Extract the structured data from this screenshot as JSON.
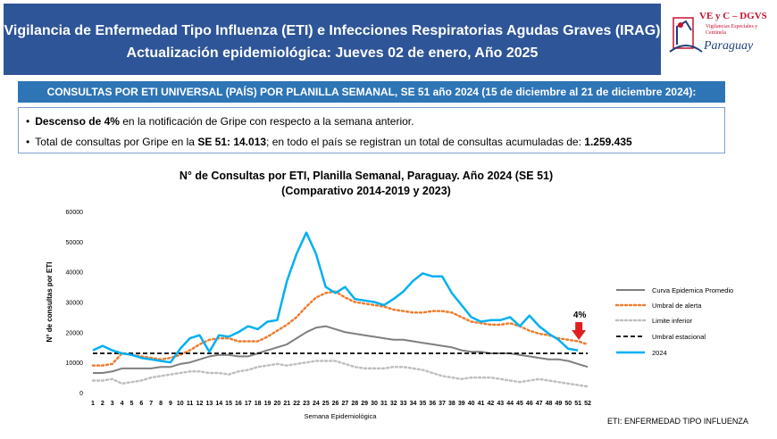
{
  "header": {
    "title_line1": "Vigilancia de Enfermedad Tipo Influenza (ETI) e Infecciones Respiratorias Agudas Graves (IRAG)",
    "title_line2": "Actualización epidemiológica: Jueves 02 de enero, Año 2025"
  },
  "logo": {
    "line1": "VE y C – DGVS",
    "line2": "Vigilancias Especiales y",
    "line3": "Centinela",
    "line4": "Paraguay"
  },
  "banner": "CONSULTAS POR ETI UNIVERSAL (PAÍS) POR PLANILLA SEMANAL, SE 51 año 2024 (15 de diciembre al 21 de diciembre 2024):",
  "bullets": {
    "b1_bold": "Descenso de 4%",
    "b1_rest": " en la notificación de Gripe con respecto a la semana anterior.",
    "b2_a": "Total de consultas por Gripe en la ",
    "b2_bold1": "SE 51: 14.013",
    "b2_b": "; en todo el país se registran un total de consultas acumuladas de: ",
    "b2_bold2": "1.259.435"
  },
  "footnote": "ETI: ENFERMEDAD TIPO INFLUENZA",
  "chart_data": {
    "type": "line",
    "title": "N° de Consultas por ETI, Planilla Semanal, Paraguay. Año 2024  (SE 51)",
    "subtitle": "(Comparativo 2014-2019 y 2023)",
    "xlabel": "Semana Epidemiológica",
    "ylabel": "N° de consultas por ETI",
    "ylim": [
      0,
      60000
    ],
    "yticks": [
      "0",
      "10000",
      "20000",
      "30000",
      "40000",
      "50000",
      "60000"
    ],
    "x": [
      1,
      2,
      3,
      4,
      5,
      6,
      7,
      8,
      9,
      10,
      11,
      12,
      13,
      14,
      15,
      16,
      17,
      18,
      19,
      20,
      21,
      22,
      23,
      24,
      25,
      26,
      27,
      28,
      29,
      30,
      31,
      32,
      33,
      34,
      35,
      36,
      37,
      38,
      39,
      40,
      41,
      42,
      43,
      44,
      45,
      46,
      47,
      48,
      49,
      50,
      51,
      52
    ],
    "annotation": "4%",
    "legend_position": "right",
    "series": [
      {
        "name": "Curva Epidemica Promedio",
        "color": "#7f7f7f",
        "style": "solid",
        "values": [
          6500,
          6500,
          7000,
          8000,
          8000,
          8000,
          8000,
          8500,
          8500,
          9500,
          10000,
          11000,
          12000,
          12500,
          12500,
          12000,
          12000,
          13000,
          14000,
          15000,
          16000,
          18000,
          20000,
          21500,
          22000,
          21000,
          20000,
          19500,
          19000,
          18500,
          18000,
          17500,
          17500,
          17000,
          16500,
          16000,
          15500,
          15000,
          14000,
          13500,
          13500,
          13000,
          13000,
          13000,
          12500,
          12000,
          11500,
          11000,
          11000,
          10500,
          9500,
          8500
        ]
      },
      {
        "name": "Umbral de alerta",
        "color": "#ed7d31",
        "style": "dotted",
        "values": [
          9000,
          9000,
          9500,
          13000,
          12500,
          12000,
          11500,
          11000,
          11500,
          12500,
          14000,
          16000,
          17500,
          18000,
          18000,
          17000,
          17000,
          17000,
          18500,
          20500,
          22500,
          25000,
          28500,
          31500,
          33000,
          33500,
          31500,
          30000,
          29500,
          29000,
          28500,
          27500,
          27000,
          26500,
          26500,
          27000,
          27000,
          26500,
          25000,
          23500,
          23000,
          22500,
          22500,
          23000,
          22000,
          20500,
          19500,
          19000,
          18000,
          17500,
          17000,
          16000
        ]
      },
      {
        "name": "Limite inferior",
        "color": "#bfbfbf",
        "style": "dotted",
        "values": [
          4000,
          4000,
          4500,
          3000,
          3500,
          4000,
          5000,
          5500,
          6000,
          6500,
          7000,
          7000,
          6500,
          6500,
          6000,
          7000,
          7500,
          8500,
          9000,
          9500,
          9000,
          9500,
          10000,
          10500,
          10500,
          10500,
          9500,
          8500,
          8000,
          8000,
          8000,
          8500,
          8500,
          8000,
          7500,
          6500,
          5500,
          5000,
          4500,
          5000,
          5000,
          5000,
          4500,
          4000,
          3500,
          4000,
          4500,
          4000,
          3500,
          3000,
          2500,
          2000
        ]
      },
      {
        "name": "Umbral estacional",
        "color": "#000000",
        "style": "dashed",
        "values": [
          13000,
          13000,
          13000,
          13000,
          13000,
          13000,
          13000,
          13000,
          13000,
          13000,
          13000,
          13000,
          13000,
          13000,
          13000,
          13000,
          13000,
          13000,
          13000,
          13000,
          13000,
          13000,
          13000,
          13000,
          13000,
          13000,
          13000,
          13000,
          13000,
          13000,
          13000,
          13000,
          13000,
          13000,
          13000,
          13000,
          13000,
          13000,
          13000,
          13000,
          13000,
          13000,
          13000,
          13000,
          13000,
          13000,
          13000,
          13000,
          13000,
          13000,
          13000,
          13000
        ]
      },
      {
        "name": "2024",
        "color": "#00b0f0",
        "style": "solid",
        "values": [
          14000,
          15500,
          14000,
          13000,
          12500,
          11500,
          11000,
          10500,
          10000,
          14500,
          18000,
          19000,
          13500,
          19000,
          18500,
          20000,
          22000,
          21000,
          23500,
          24000,
          37000,
          46000,
          53000,
          46000,
          35000,
          33000,
          35000,
          31000,
          30500,
          30000,
          29000,
          31000,
          33500,
          37000,
          39500,
          38500,
          38500,
          33000,
          29000,
          25000,
          23500,
          24000,
          24000,
          25000,
          22000,
          25500,
          22000,
          19500,
          17500,
          14500,
          14000,
          null
        ]
      }
    ]
  }
}
